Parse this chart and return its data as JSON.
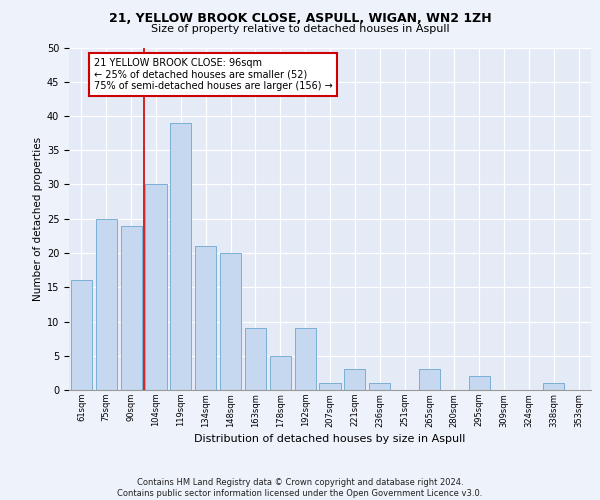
{
  "title1": "21, YELLOW BROOK CLOSE, ASPULL, WIGAN, WN2 1ZH",
  "title2": "Size of property relative to detached houses in Aspull",
  "xlabel": "Distribution of detached houses by size in Aspull",
  "ylabel": "Number of detached properties",
  "categories": [
    "61sqm",
    "75sqm",
    "90sqm",
    "104sqm",
    "119sqm",
    "134sqm",
    "148sqm",
    "163sqm",
    "178sqm",
    "192sqm",
    "207sqm",
    "221sqm",
    "236sqm",
    "251sqm",
    "265sqm",
    "280sqm",
    "295sqm",
    "309sqm",
    "324sqm",
    "338sqm",
    "353sqm"
  ],
  "values": [
    16,
    25,
    24,
    30,
    39,
    21,
    20,
    9,
    5,
    9,
    1,
    3,
    1,
    0,
    3,
    0,
    2,
    0,
    0,
    1,
    0
  ],
  "bar_color": "#c5d8f0",
  "bar_edge_color": "#7aafd4",
  "vline_x": 2.5,
  "vline_color": "#cc0000",
  "annotation_text": "21 YELLOW BROOK CLOSE: 96sqm\n← 25% of detached houses are smaller (52)\n75% of semi-detached houses are larger (156) →",
  "annotation_box_color": "#ffffff",
  "annotation_box_edge": "#cc0000",
  "ylim": [
    0,
    50
  ],
  "yticks": [
    0,
    5,
    10,
    15,
    20,
    25,
    30,
    35,
    40,
    45,
    50
  ],
  "footer": "Contains HM Land Registry data © Crown copyright and database right 2024.\nContains public sector information licensed under the Open Government Licence v3.0.",
  "bg_color": "#eef2fa",
  "plot_bg_color": "#e4eaf6"
}
